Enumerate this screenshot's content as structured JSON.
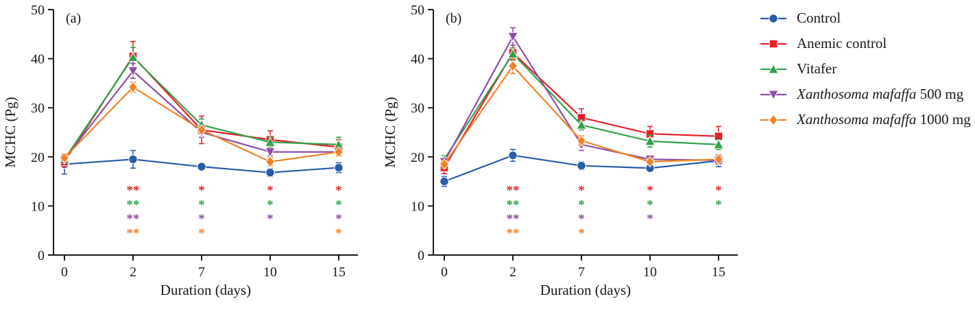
{
  "figure": {
    "ylabel": "MCHC (Pg)",
    "xlabel": "Duration (days)"
  },
  "legend": {
    "items": [
      {
        "label_italic": "",
        "label_rest": "Control",
        "marker": "circle",
        "color": "#2a5caa"
      },
      {
        "label_italic": "",
        "label_rest": "Anemic control",
        "marker": "square",
        "color": "#e62129"
      },
      {
        "label_italic": "",
        "label_rest": "Vitafer",
        "marker": "triangle-up",
        "color": "#34a14b"
      },
      {
        "label_italic": "Xanthosoma mafaffa",
        "label_rest": " 500 mg",
        "marker": "triangle-down",
        "color": "#8d4fa4"
      },
      {
        "label_italic": "Xanthosoma mafaffa",
        "label_rest": " 1000 mg",
        "marker": "diamond",
        "color": "#f0832a"
      }
    ]
  },
  "chart_data": [
    {
      "type": "line",
      "panel_label": "(a)",
      "x": [
        0,
        2,
        7,
        10,
        15
      ],
      "xlabel": "Duration (days)",
      "ylabel": "MCHC (Pg)",
      "ylim": [
        0,
        50
      ],
      "yticks": [
        0,
        10,
        20,
        30,
        40,
        50
      ],
      "series": [
        {
          "name": "Control",
          "color": "#2a5caa",
          "marker": "circle",
          "values": [
            18.5,
            19.5,
            18.0,
            16.8,
            17.8
          ],
          "err": [
            2.0,
            1.8,
            0.6,
            0.8,
            1.0
          ]
        },
        {
          "name": "Anemic control",
          "color": "#e62129",
          "marker": "square",
          "values": [
            19.0,
            40.5,
            25.5,
            23.5,
            22.0
          ],
          "err": [
            1.0,
            3.0,
            2.8,
            1.8,
            1.5
          ]
        },
        {
          "name": "Vitafer",
          "color": "#34a14b",
          "marker": "triangle-up",
          "values": [
            19.5,
            40.3,
            26.5,
            23.0,
            22.5
          ],
          "err": [
            0.8,
            2.0,
            1.2,
            1.0,
            1.5
          ]
        },
        {
          "name": "Xanthosoma mafaffa 500 mg",
          "color": "#8d4fa4",
          "marker": "triangle-down",
          "values": [
            19.5,
            37.5,
            25.0,
            21.0,
            21.0
          ],
          "err": [
            0.8,
            1.5,
            1.0,
            0.8,
            0.8
          ]
        },
        {
          "name": "Xanthosoma mafaffa 1000 mg",
          "color": "#f0832a",
          "marker": "diamond",
          "values": [
            19.8,
            34.2,
            25.5,
            19.0,
            21.0
          ],
          "err": [
            0.8,
            1.0,
            0.8,
            0.8,
            0.8
          ]
        }
      ],
      "asterisks": {
        "columns": [
          2,
          7,
          10,
          15
        ],
        "row_y": [
          13.2,
          10.3,
          7.4,
          4.5
        ],
        "rows": [
          {
            "color": "#e62129",
            "marks": [
              "**",
              "*",
              "*",
              "*"
            ]
          },
          {
            "color": "#34a14b",
            "marks": [
              "**",
              "*",
              "*",
              "*"
            ]
          },
          {
            "color": "#8d4fa4",
            "marks": [
              "**",
              "*",
              "*",
              "*"
            ]
          },
          {
            "color": "#f0832a",
            "marks": [
              "**",
              "*",
              "",
              "*"
            ]
          }
        ]
      }
    },
    {
      "type": "line",
      "panel_label": "(b)",
      "x": [
        0,
        2,
        7,
        10,
        15
      ],
      "xlabel": "Duration (days)",
      "ylabel": "MCHC (Pg)",
      "ylim": [
        0,
        50
      ],
      "yticks": [
        0,
        10,
        20,
        30,
        40,
        50
      ],
      "series": [
        {
          "name": "Control",
          "color": "#2a5caa",
          "marker": "circle",
          "values": [
            15.0,
            20.3,
            18.2,
            17.7,
            19.2
          ],
          "err": [
            1.0,
            1.2,
            0.8,
            0.6,
            1.2
          ]
        },
        {
          "name": "Anemic control",
          "color": "#e62129",
          "marker": "square",
          "values": [
            17.8,
            41.2,
            28.0,
            24.7,
            24.2
          ],
          "err": [
            1.2,
            1.5,
            1.8,
            1.5,
            2.0
          ]
        },
        {
          "name": "Vitafer",
          "color": "#34a14b",
          "marker": "triangle-up",
          "values": [
            19.5,
            41.0,
            26.5,
            23.2,
            22.5
          ],
          "err": [
            0.8,
            1.2,
            1.0,
            1.2,
            1.0
          ]
        },
        {
          "name": "Xanthosoma mafaffa 500 mg",
          "color": "#8d4fa4",
          "marker": "triangle-down",
          "values": [
            19.0,
            44.5,
            22.5,
            19.5,
            19.3
          ],
          "err": [
            0.8,
            1.8,
            1.2,
            0.8,
            0.8
          ]
        },
        {
          "name": "Xanthosoma mafaffa 1000 mg",
          "color": "#f0832a",
          "marker": "diamond",
          "values": [
            18.5,
            38.5,
            23.3,
            19.0,
            19.5
          ],
          "err": [
            0.8,
            1.5,
            1.0,
            0.6,
            0.8
          ]
        }
      ],
      "asterisks": {
        "columns": [
          2,
          7,
          10,
          15
        ],
        "row_y": [
          13.2,
          10.3,
          7.4,
          4.5
        ],
        "rows": [
          {
            "color": "#e62129",
            "marks": [
              "**",
              "*",
              "*",
              "*"
            ]
          },
          {
            "color": "#34a14b",
            "marks": [
              "**",
              "*",
              "*",
              "*"
            ]
          },
          {
            "color": "#8d4fa4",
            "marks": [
              "**",
              "*",
              "*",
              ""
            ]
          },
          {
            "color": "#f0832a",
            "marks": [
              "**",
              "*",
              "",
              ""
            ]
          }
        ]
      }
    }
  ]
}
